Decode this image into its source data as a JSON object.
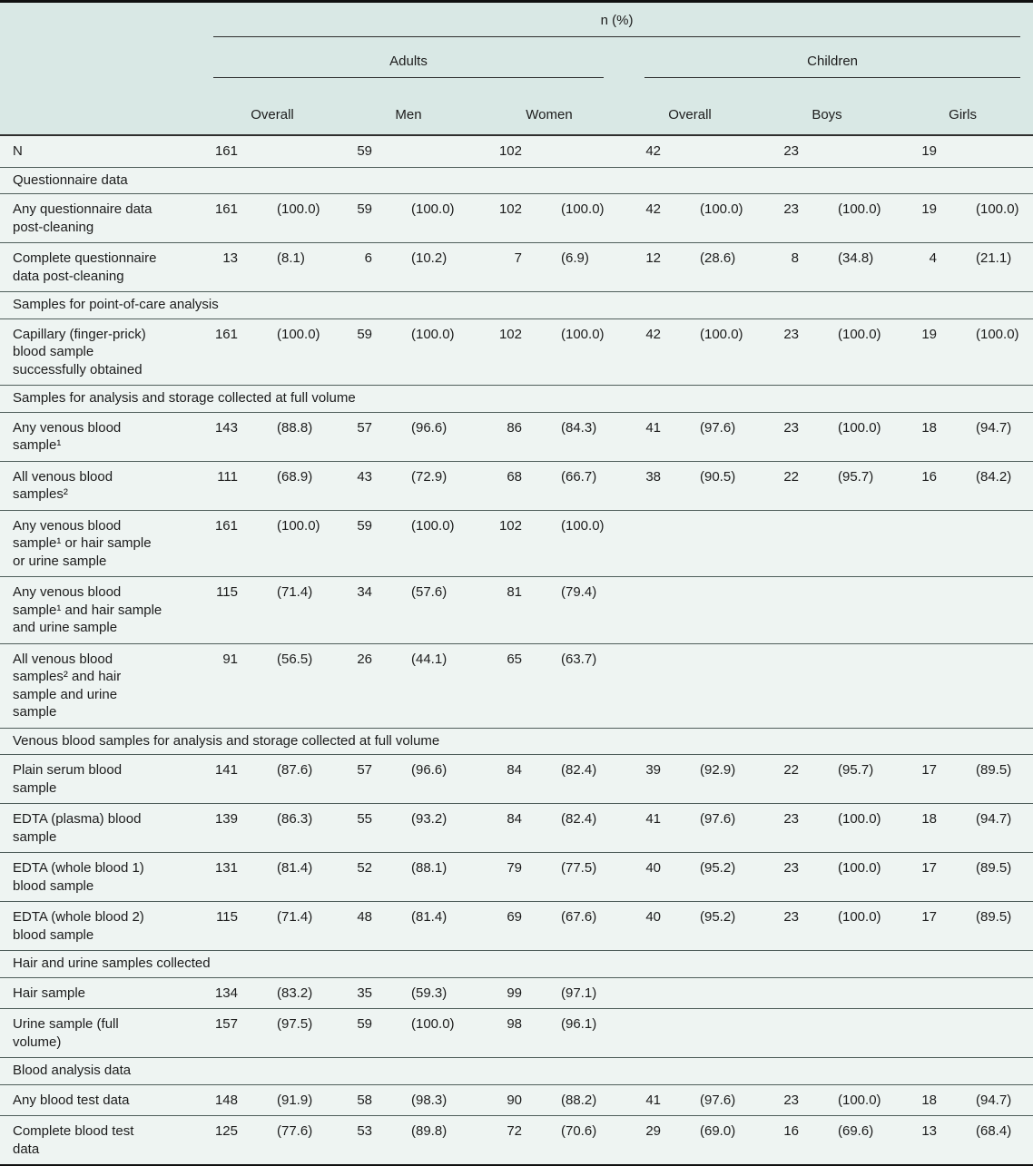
{
  "table": {
    "header": {
      "measure_label": "n (%)",
      "group_adults": "Adults",
      "group_children": "Children",
      "adults_cols": [
        "Overall",
        "Men",
        "Women"
      ],
      "children_cols": [
        "Overall",
        "Boys",
        "Girls"
      ]
    },
    "rows": [
      {
        "type": "data",
        "label": "N",
        "values": [
          "161",
          "",
          "59",
          "",
          "102",
          "",
          "42",
          "",
          "23",
          "",
          "19",
          ""
        ]
      },
      {
        "type": "section",
        "label": "Questionnaire data"
      },
      {
        "type": "data",
        "label": "Any questionnaire data\npost-cleaning",
        "values": [
          "161",
          "(100.0)",
          "59",
          "(100.0)",
          "102",
          "(100.0)",
          "42",
          "(100.0)",
          "23",
          "(100.0)",
          "19",
          "(100.0)"
        ]
      },
      {
        "type": "data",
        "label": "Complete questionnaire\ndata post-cleaning",
        "values": [
          "13",
          "(8.1)",
          "6",
          "(10.2)",
          "7",
          "(6.9)",
          "12",
          "(28.6)",
          "8",
          "(34.8)",
          "4",
          "(21.1)"
        ]
      },
      {
        "type": "section",
        "label": "Samples for point-of-care analysis"
      },
      {
        "type": "data",
        "label": "Capillary (finger-prick)\nblood sample\nsuccessfully obtained",
        "values": [
          "161",
          "(100.0)",
          "59",
          "(100.0)",
          "102",
          "(100.0)",
          "42",
          "(100.0)",
          "23",
          "(100.0)",
          "19",
          "(100.0)"
        ]
      },
      {
        "type": "section",
        "label": "Samples for analysis and storage collected at full volume"
      },
      {
        "type": "data",
        "label": "Any venous blood\nsample¹",
        "values": [
          "143",
          "(88.8)",
          "57",
          "(96.6)",
          "86",
          "(84.3)",
          "41",
          "(97.6)",
          "23",
          "(100.0)",
          "18",
          "(94.7)"
        ]
      },
      {
        "type": "data",
        "label": "All venous blood\nsamples²",
        "values": [
          "111",
          "(68.9)",
          "43",
          "(72.9)",
          "68",
          "(66.7)",
          "38",
          "(90.5)",
          "22",
          "(95.7)",
          "16",
          "(84.2)"
        ]
      },
      {
        "type": "data",
        "label": "Any venous blood\nsample¹ or hair sample\nor urine sample",
        "values": [
          "161",
          "(100.0)",
          "59",
          "(100.0)",
          "102",
          "(100.0)",
          "",
          "",
          "",
          "",
          "",
          ""
        ]
      },
      {
        "type": "data",
        "label": "Any venous blood\nsample¹ and hair sample\nand urine sample",
        "values": [
          "115",
          "(71.4)",
          "34",
          "(57.6)",
          "81",
          "(79.4)",
          "",
          "",
          "",
          "",
          "",
          ""
        ]
      },
      {
        "type": "data",
        "label": "All venous blood\nsamples² and hair\nsample and urine\nsample",
        "values": [
          "91",
          "(56.5)",
          "26",
          "(44.1)",
          "65",
          "(63.7)",
          "",
          "",
          "",
          "",
          "",
          ""
        ]
      },
      {
        "type": "section",
        "label": "Venous blood samples for analysis and storage collected at full volume"
      },
      {
        "type": "data",
        "label": "Plain serum blood\nsample",
        "values": [
          "141",
          "(87.6)",
          "57",
          "(96.6)",
          "84",
          "(82.4)",
          "39",
          "(92.9)",
          "22",
          "(95.7)",
          "17",
          "(89.5)"
        ]
      },
      {
        "type": "data",
        "label": "EDTA (plasma) blood\nsample",
        "values": [
          "139",
          "(86.3)",
          "55",
          "(93.2)",
          "84",
          "(82.4)",
          "41",
          "(97.6)",
          "23",
          "(100.0)",
          "18",
          "(94.7)"
        ]
      },
      {
        "type": "data",
        "label": "EDTA (whole blood 1)\nblood sample",
        "values": [
          "131",
          "(81.4)",
          "52",
          "(88.1)",
          "79",
          "(77.5)",
          "40",
          "(95.2)",
          "23",
          "(100.0)",
          "17",
          "(89.5)"
        ]
      },
      {
        "type": "data",
        "label": "EDTA (whole blood 2)\nblood sample",
        "values": [
          "115",
          "(71.4)",
          "48",
          "(81.4)",
          "69",
          "(67.6)",
          "40",
          "(95.2)",
          "23",
          "(100.0)",
          "17",
          "(89.5)"
        ]
      },
      {
        "type": "section",
        "label": "Hair and urine samples collected"
      },
      {
        "type": "data",
        "label": "Hair sample",
        "values": [
          "134",
          "(83.2)",
          "35",
          "(59.3)",
          "99",
          "(97.1)",
          "",
          "",
          "",
          "",
          "",
          ""
        ]
      },
      {
        "type": "data",
        "label": "Urine sample (full\nvolume)",
        "values": [
          "157",
          "(97.5)",
          "59",
          "(100.0)",
          "98",
          "(96.1)",
          "",
          "",
          "",
          "",
          "",
          ""
        ]
      },
      {
        "type": "section",
        "label": "Blood analysis data"
      },
      {
        "type": "data",
        "label": "Any blood test data",
        "values": [
          "148",
          "(91.9)",
          "58",
          "(98.3)",
          "90",
          "(88.2)",
          "41",
          "(97.6)",
          "23",
          "(100.0)",
          "18",
          "(94.7)"
        ]
      },
      {
        "type": "data",
        "label": "Complete blood test\ndata",
        "values": [
          "125",
          "(77.6)",
          "53",
          "(89.8)",
          "72",
          "(70.6)",
          "29",
          "(69.0)",
          "16",
          "(69.6)",
          "13",
          "(68.4)"
        ]
      }
    ]
  },
  "colors": {
    "header_background": "#d9e8e5",
    "body_background": "#eef4f2",
    "heavy_rule": "#101010",
    "light_rule": "#4f5e5b",
    "text": "#1c1c1c"
  }
}
